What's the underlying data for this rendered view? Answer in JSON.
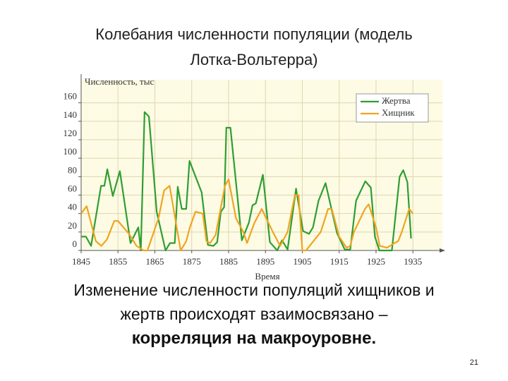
{
  "slide": {
    "title": [
      "Колебания численности популяции (модель",
      "Лотка-Вольтерра)"
    ],
    "text": [
      "Изменение численности популяций хищников и",
      "жертв происходят взаимосвязано –",
      "корреляция на макроуровне."
    ],
    "page": "21"
  },
  "chart_data": {
    "type": "line",
    "ylabel": "Численность, тыс",
    "xlabel": "Время",
    "xlim": [
      1845,
      1943
    ],
    "ylim": [
      0,
      185
    ],
    "xticks": [
      1845,
      1855,
      1865,
      1875,
      1885,
      1895,
      1905,
      1915,
      1925,
      1935
    ],
    "yticks": [
      0,
      20,
      40,
      60,
      80,
      100,
      120,
      140,
      160
    ],
    "grid": true,
    "legend": "upper right",
    "series": [
      {
        "name": "Жертва",
        "color": "#2e9e32",
        "x": [
          1845,
          1846.3,
          1847.7,
          1850.4,
          1851.3,
          1852.1,
          1853.6,
          1855.5,
          1858.4,
          1860.5,
          1861.2,
          1862.2,
          1863.4,
          1865.5,
          1867.9,
          1869.1,
          1870.4,
          1871.2,
          1872.3,
          1873.5,
          1874.4,
          1877.7,
          1879.4,
          1880.9,
          1881.9,
          1882.9,
          1883.8,
          1884.4,
          1885.5,
          1888.6,
          1890.5,
          1891.5,
          1892.4,
          1894.3,
          1896.2,
          1898.2,
          1899.5,
          1901.0,
          1903.3,
          1905.2,
          1906.8,
          1907.9,
          1909.4,
          1911.3,
          1914.4,
          1916.5,
          1918.0,
          1919.6,
          1922.1,
          1923.6,
          1924.7,
          1925.9,
          1927.8,
          1929.3,
          1931.4,
          1932.4,
          1933.5,
          1934.5
        ],
        "values": [
          15,
          15,
          5,
          70,
          70,
          88,
          59,
          86,
          8,
          25,
          0,
          150,
          145,
          42,
          0,
          8,
          8,
          69,
          45,
          45,
          97,
          63,
          6,
          5,
          9,
          42,
          47,
          133,
          133,
          11,
          30,
          49,
          51,
          82,
          9,
          0,
          11,
          1,
          67,
          21,
          18,
          25,
          54,
          73,
          19,
          1,
          1,
          54,
          75,
          68,
          15,
          0,
          0,
          0,
          80,
          87,
          74,
          13
        ]
      },
      {
        "name": "Хищник",
        "color": "#f0a420",
        "x": [
          1845,
          1846.5,
          1849,
          1850.5,
          1852,
          1854,
          1855,
          1858,
          1860,
          1862,
          1863,
          1866,
          1867.5,
          1869,
          1872,
          1873.5,
          1874.5,
          1876,
          1878,
          1879,
          1880,
          1881.5,
          1884,
          1885,
          1887,
          1889,
          1890,
          1892,
          1894,
          1897,
          1899,
          1901,
          1903,
          1904,
          1905,
          1906,
          1908,
          1910,
          1912,
          1913,
          1915,
          1917,
          1918,
          1919,
          1922,
          1923,
          1925,
          1926,
          1928,
          1930,
          1931,
          1932,
          1934,
          1935
        ],
        "values": [
          40,
          48,
          10,
          5,
          12,
          32,
          32,
          18,
          5,
          0,
          0,
          35,
          65,
          70,
          0,
          10,
          25,
          42,
          40,
          10,
          8,
          17,
          70,
          77,
          35,
          20,
          8,
          30,
          45,
          20,
          5,
          20,
          60,
          60,
          0,
          0,
          10,
          20,
          45,
          45,
          15,
          3,
          5,
          20,
          45,
          50,
          25,
          5,
          3,
          8,
          10,
          20,
          45,
          40
        ]
      }
    ]
  }
}
